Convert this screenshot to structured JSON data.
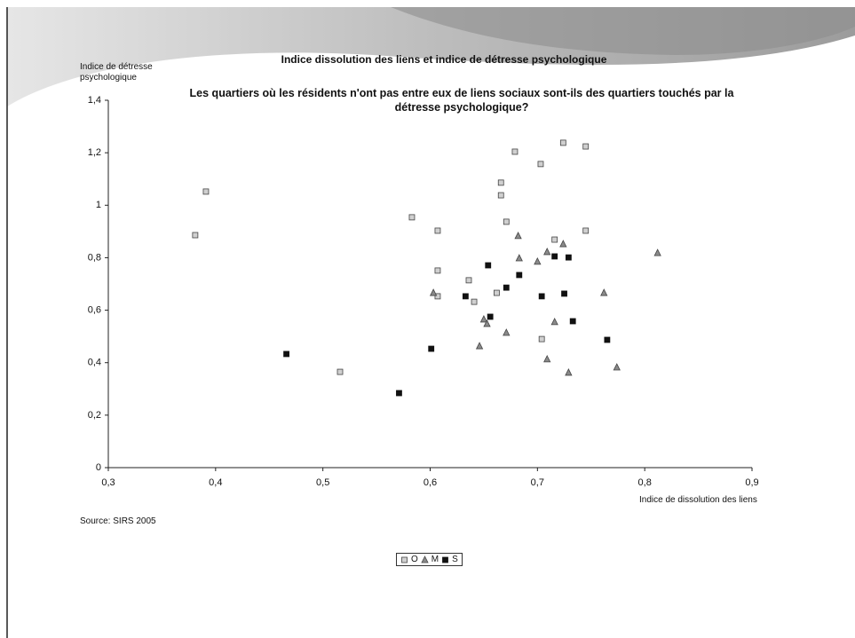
{
  "chart_data": {
    "type": "scatter",
    "title": "Indice dissolution des liens et indice de détresse psychologique",
    "subtitle": "Les quartiers où les résidents n'ont pas entre eux de liens sociaux sont-ils des quartiers touchés par la détresse psychologique?",
    "y_label": "Indice de détresse psychologique",
    "x_label": "Indice de dissolution des liens",
    "source": "Source: SIRS 2005",
    "xlim": [
      0.3,
      0.9
    ],
    "xticks": [
      {
        "value": 0.3,
        "label": "0,3"
      },
      {
        "value": 0.4,
        "label": "0,4"
      },
      {
        "value": 0.5,
        "label": "0,5"
      },
      {
        "value": 0.6,
        "label": "0,6"
      },
      {
        "value": 0.7,
        "label": "0,7"
      },
      {
        "value": 0.8,
        "label": "0,8"
      },
      {
        "value": 0.9,
        "label": "0,9"
      }
    ],
    "ylim": [
      0,
      1.4
    ],
    "yticks": [
      0,
      {
        "value": 0.2,
        "label": "0,2"
      },
      {
        "value": 0.4,
        "label": "0,4"
      },
      {
        "value": 0.6,
        "label": "0,6"
      },
      {
        "value": 0.8,
        "label": "0,8"
      },
      1,
      {
        "value": 1.2,
        "label": "1,2"
      },
      {
        "value": 1.4,
        "label": "1,4"
      }
    ],
    "series": [
      {
        "name": "O",
        "color": "#d0d0d0",
        "marker": "square",
        "x": [
          0.381,
          0.391,
          0.516,
          0.583,
          0.607,
          0.607,
          0.607,
          0.636,
          0.641,
          0.662,
          0.666,
          0.666,
          0.671,
          0.679,
          0.703,
          0.704,
          0.716,
          0.724,
          0.745,
          0.745
        ],
        "values": [
          0.886,
          1.052,
          0.365,
          0.954,
          0.903,
          0.751,
          0.653,
          0.714,
          0.632,
          0.666,
          1.086,
          1.038,
          0.937,
          1.204,
          1.157,
          0.49,
          0.869,
          1.238,
          1.224,
          0.903
        ]
      },
      {
        "name": "M",
        "color": "#8a8a8a",
        "marker": "triangle",
        "x": [
          0.603,
          0.646,
          0.65,
          0.653,
          0.671,
          0.682,
          0.683,
          0.7,
          0.709,
          0.709,
          0.716,
          0.724,
          0.729,
          0.762,
          0.774,
          0.812
        ],
        "values": [
          0.666,
          0.463,
          0.565,
          0.548,
          0.514,
          0.883,
          0.798,
          0.785,
          0.822,
          0.413,
          0.555,
          0.852,
          0.362,
          0.666,
          0.382,
          0.818
        ]
      },
      {
        "name": "S",
        "color": "#111111",
        "marker": "square",
        "x": [
          0.466,
          0.571,
          0.601,
          0.633,
          0.654,
          0.656,
          0.671,
          0.683,
          0.704,
          0.716,
          0.725,
          0.729,
          0.733,
          0.765
        ],
        "values": [
          0.433,
          0.284,
          0.453,
          0.653,
          0.771,
          0.575,
          0.686,
          0.734,
          0.653,
          0.805,
          0.663,
          0.801,
          0.558,
          0.487
        ]
      }
    ]
  }
}
